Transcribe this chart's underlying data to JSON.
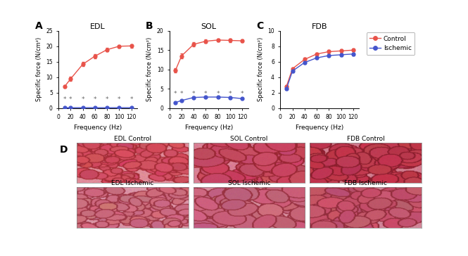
{
  "freq": [
    10,
    20,
    40,
    60,
    80,
    100,
    120
  ],
  "EDL": {
    "title": "EDL",
    "control": [
      7.0,
      9.5,
      14.2,
      16.8,
      18.9,
      20.0,
      20.1
    ],
    "control_err": [
      0.5,
      0.6,
      0.7,
      0.6,
      0.6,
      0.5,
      0.5
    ],
    "ischemic": [
      0.15,
      0.18,
      0.2,
      0.2,
      0.18,
      0.2,
      0.2
    ],
    "ischemic_err": [
      0.05,
      0.04,
      0.05,
      0.04,
      0.04,
      0.04,
      0.04
    ],
    "ylim": [
      0,
      25
    ],
    "yticks": [
      0,
      5,
      10,
      15,
      20,
      25
    ],
    "ylabel": "Specific force (N/cm²)",
    "stars_y": [
      2.8,
      2.8,
      2.8,
      2.8,
      2.8,
      2.8,
      2.8
    ]
  },
  "SOL": {
    "title": "SOL",
    "control": [
      9.8,
      13.5,
      16.5,
      17.3,
      17.6,
      17.5,
      17.4
    ],
    "control_err": [
      0.5,
      0.6,
      0.5,
      0.5,
      0.4,
      0.4,
      0.4
    ],
    "ischemic": [
      1.5,
      2.0,
      2.8,
      2.9,
      2.9,
      2.8,
      2.5
    ],
    "ischemic_err": [
      0.2,
      0.2,
      0.2,
      0.25,
      0.2,
      0.2,
      0.2
    ],
    "ylim": [
      0,
      20
    ],
    "yticks": [
      0,
      5,
      10,
      15,
      20
    ],
    "ylabel": "Specific force (N/cm²)",
    "stars_y": [
      3.8,
      3.8,
      3.8,
      3.8,
      3.8,
      3.8,
      3.8
    ]
  },
  "FDB": {
    "title": "FDB",
    "control": [
      2.8,
      5.1,
      6.3,
      7.0,
      7.3,
      7.4,
      7.5
    ],
    "control_err": [
      0.15,
      0.2,
      0.2,
      0.2,
      0.2,
      0.2,
      0.2
    ],
    "ischemic": [
      2.5,
      4.8,
      5.9,
      6.5,
      6.8,
      6.9,
      7.0
    ],
    "ischemic_err": [
      0.15,
      0.2,
      0.2,
      0.2,
      0.2,
      0.2,
      0.2
    ],
    "ylim": [
      0,
      10
    ],
    "yticks": [
      0,
      2,
      4,
      6,
      8,
      10
    ],
    "ylabel": "Specific force (N/cm²)"
  },
  "control_color": "#E8534A",
  "ischemic_color": "#4455CC",
  "xlabel": "Frequency (Hz)",
  "histology_labels": [
    [
      "EDL Control",
      "SOL Control",
      "FDB Control"
    ],
    [
      "EDL Ischemic",
      "SOL Ischemic",
      "FDB Ischemic"
    ]
  ],
  "panel_configs": [
    [
      {
        "base": [
          0.82,
          0.3,
          0.38
        ],
        "cell_color": [
          0.65,
          0.18,
          0.22
        ],
        "bg": [
          0.88,
          0.55,
          0.6
        ],
        "style": "small_cells"
      },
      {
        "base": [
          0.78,
          0.28,
          0.38
        ],
        "cell_color": [
          0.6,
          0.15,
          0.2
        ],
        "bg": [
          0.85,
          0.5,
          0.58
        ],
        "style": "large_cells"
      },
      {
        "base": [
          0.75,
          0.22,
          0.3
        ],
        "cell_color": [
          0.55,
          0.12,
          0.18
        ],
        "bg": [
          0.82,
          0.48,
          0.55
        ],
        "style": "dense"
      }
    ],
    [
      {
        "base": [
          0.8,
          0.42,
          0.5
        ],
        "cell_color": [
          0.62,
          0.22,
          0.28
        ],
        "bg": [
          0.86,
          0.58,
          0.65
        ],
        "style": "small_cells"
      },
      {
        "base": [
          0.78,
          0.38,
          0.48
        ],
        "cell_color": [
          0.6,
          0.2,
          0.26
        ],
        "bg": [
          0.84,
          0.55,
          0.62
        ],
        "style": "large_cells"
      },
      {
        "base": [
          0.76,
          0.32,
          0.42
        ],
        "cell_color": [
          0.58,
          0.18,
          0.24
        ],
        "bg": [
          0.82,
          0.52,
          0.6
        ],
        "style": "dense"
      }
    ]
  ]
}
